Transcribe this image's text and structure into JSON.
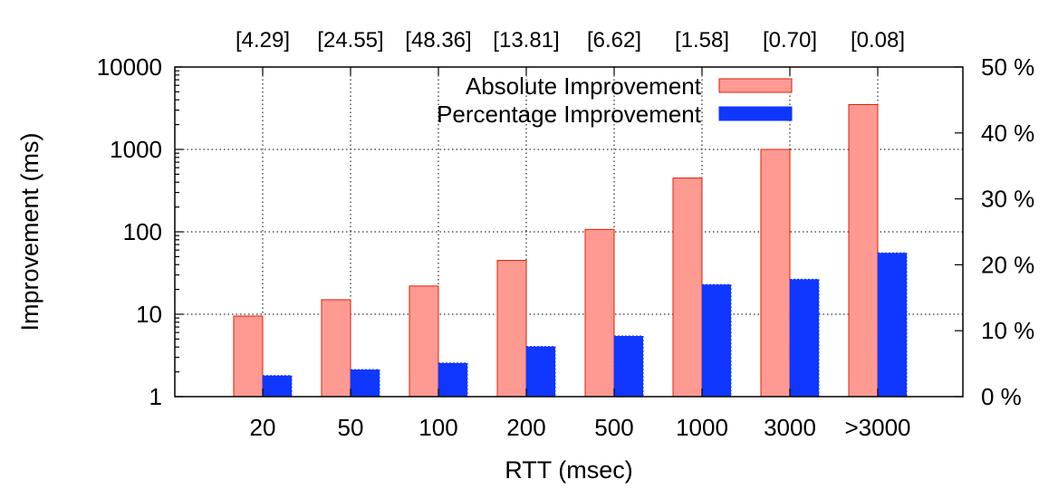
{
  "chart_data": {
    "type": "bar",
    "categories": [
      "20",
      "50",
      "100",
      "200",
      "500",
      "1000",
      "3000",
      ">3000"
    ],
    "category_shares": [
      "[4.29]",
      "[24.55]",
      "[48.36]",
      "[13.81]",
      "[6.62]",
      "[1.58]",
      "[0.70]",
      "[0.08]"
    ],
    "xlabel": "RTT (msec)",
    "ylabel": "Improvement (ms)",
    "y_scale": "log",
    "ylim": [
      1,
      10000
    ],
    "y_ticks": [
      "1",
      "10",
      "100",
      "1000",
      "10000"
    ],
    "y2_ticks": [
      "0 %",
      "10 %",
      "20 %",
      "30 %",
      "40 %",
      "50 %"
    ],
    "y2lim": [
      0,
      50
    ],
    "grid": true,
    "legend_position": "top",
    "series": [
      {
        "name": "Absolute Improvement",
        "axis": "left",
        "color": "#ff9a93",
        "stroke": "#dd2200",
        "values": [
          9.5,
          15,
          22,
          45,
          107,
          450,
          1000,
          3500
        ]
      },
      {
        "name": "Percentage Improvement",
        "axis": "right",
        "color": "#0f37ff",
        "stroke": "#0f37ff",
        "values": [
          3.2,
          4.1,
          5.1,
          7.6,
          9.2,
          17.0,
          17.8,
          21.8
        ]
      }
    ]
  }
}
